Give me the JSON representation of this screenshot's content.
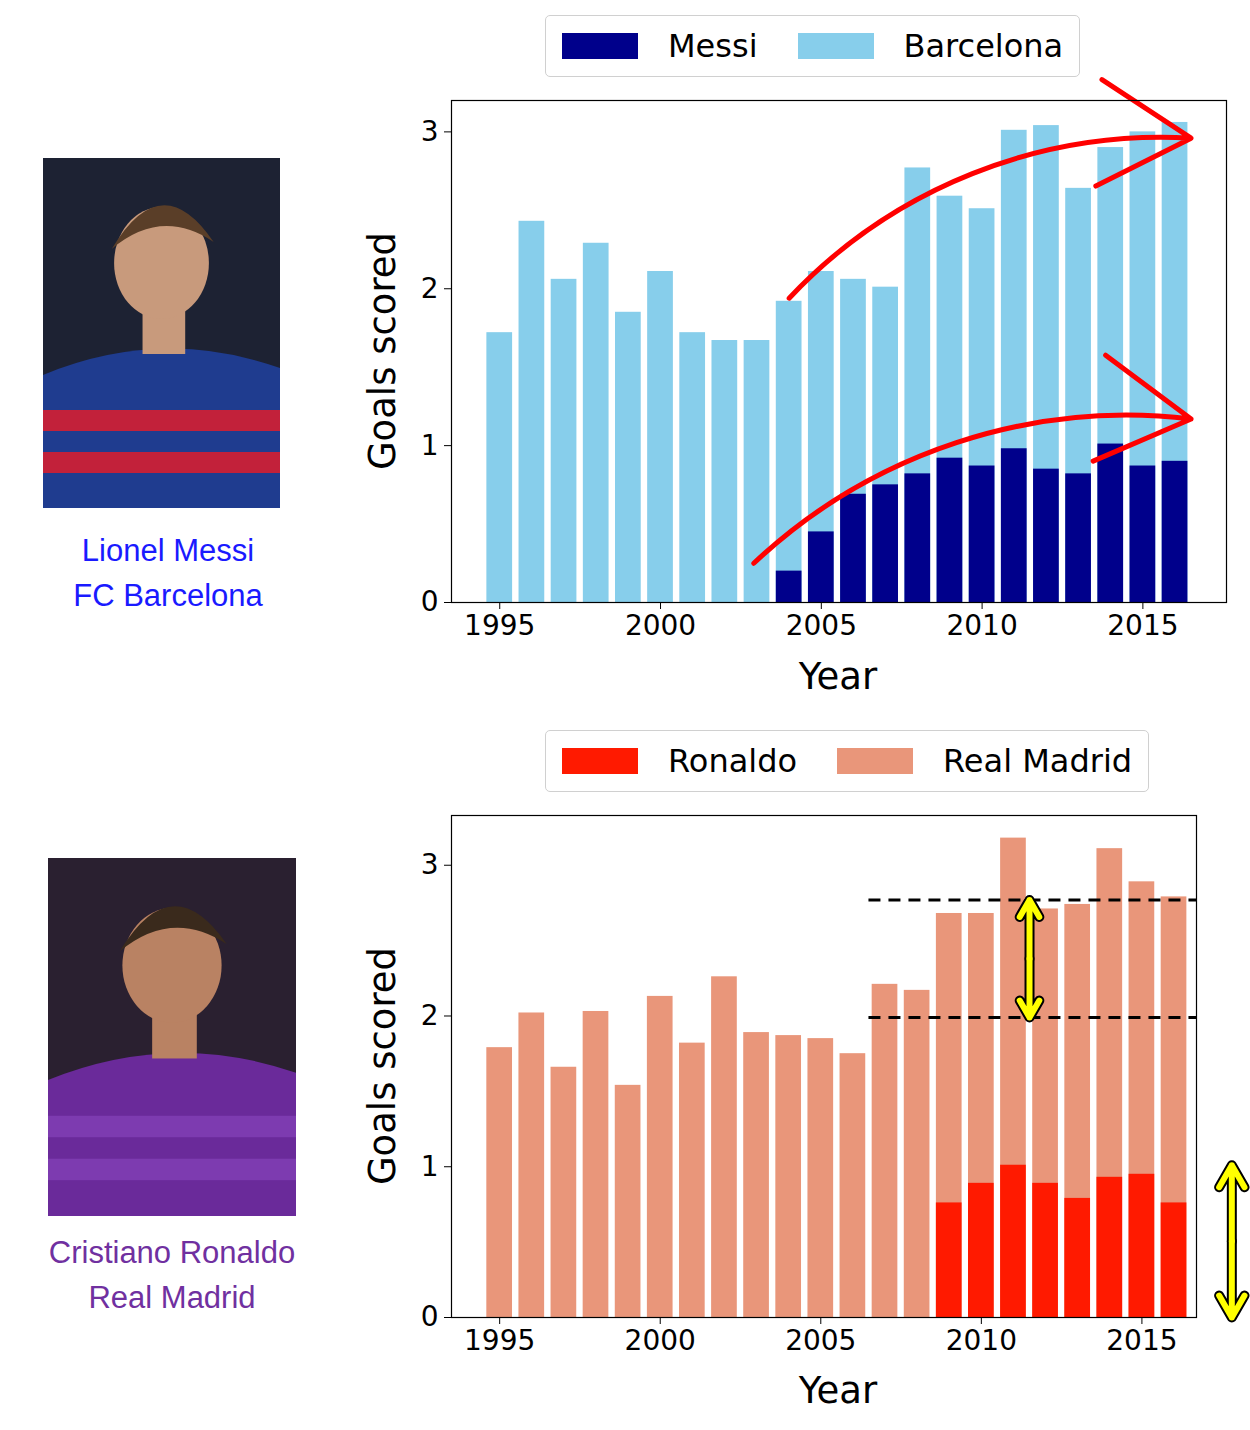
{
  "chart_data": [
    {
      "type": "bar",
      "stacked": false,
      "legend": "top",
      "x_label": "Year",
      "y_label": "Goals scored",
      "annotations": [
        "Lionel Messi",
        "FC Barcelona"
      ],
      "x": [
        1995,
        1996,
        1997,
        1998,
        1999,
        2000,
        2001,
        2002,
        2003,
        2004,
        2005,
        2006,
        2007,
        2008,
        2009,
        2010,
        2011,
        2012,
        2013,
        2014,
        2015,
        2016
      ],
      "series": [
        {
          "name": "Messi",
          "color": "#00008b",
          "values": [
            null,
            null,
            null,
            null,
            null,
            null,
            null,
            null,
            null,
            0.2,
            0.45,
            0.69,
            0.75,
            0.82,
            0.92,
            0.87,
            0.98,
            0.85,
            0.82,
            1.01,
            0.87,
            0.9
          ]
        },
        {
          "name": "Barcelona",
          "color": "#87ceeb",
          "values": [
            1.72,
            2.43,
            2.06,
            2.29,
            1.85,
            2.11,
            1.72,
            1.67,
            1.67,
            1.92,
            2.11,
            2.06,
            2.01,
            2.77,
            2.59,
            2.51,
            3.01,
            3.04,
            2.64,
            2.9,
            3.0,
            3.06
          ]
        }
      ],
      "xlim": [
        1993.5,
        2017.6
      ],
      "xticks": [
        1995,
        2000,
        2005,
        2010,
        2015
      ],
      "ylim": [
        0,
        3.2
      ],
      "yticks": [
        0,
        1,
        2,
        3
      ]
    },
    {
      "type": "bar",
      "stacked": false,
      "legend": "top",
      "x_label": "Year",
      "y_label": "Goals scored",
      "annotations": [
        "Cristiano Ronaldo",
        "Real Madrid"
      ],
      "x": [
        1995,
        1996,
        1997,
        1998,
        1999,
        2000,
        2001,
        2002,
        2003,
        2004,
        2005,
        2006,
        2007,
        2008,
        2009,
        2010,
        2011,
        2012,
        2013,
        2014,
        2015,
        2016
      ],
      "series": [
        {
          "name": "Ronaldo",
          "color": "#ff1a00",
          "values": [
            null,
            null,
            null,
            null,
            null,
            null,
            null,
            null,
            null,
            null,
            null,
            null,
            null,
            null,
            0.76,
            0.89,
            1.01,
            0.89,
            0.79,
            0.93,
            0.95,
            0.76
          ]
        },
        {
          "name": "Real Madrid",
          "color": "#e9967a",
          "values": [
            1.79,
            2.02,
            1.66,
            2.03,
            1.54,
            2.13,
            1.82,
            2.26,
            1.89,
            1.87,
            1.85,
            1.75,
            2.21,
            2.17,
            2.68,
            2.68,
            3.18,
            2.71,
            2.74,
            3.11,
            2.89,
            2.79
          ]
        }
      ],
      "reference_lines": [
        1.99,
        2.77
      ],
      "xlim": [
        1993.5,
        2016.7
      ],
      "xticks": [
        1995,
        2000,
        2005,
        2010,
        2015
      ],
      "ylim": [
        0,
        3.33
      ],
      "yticks": [
        0,
        1,
        2,
        3
      ]
    }
  ]
}
